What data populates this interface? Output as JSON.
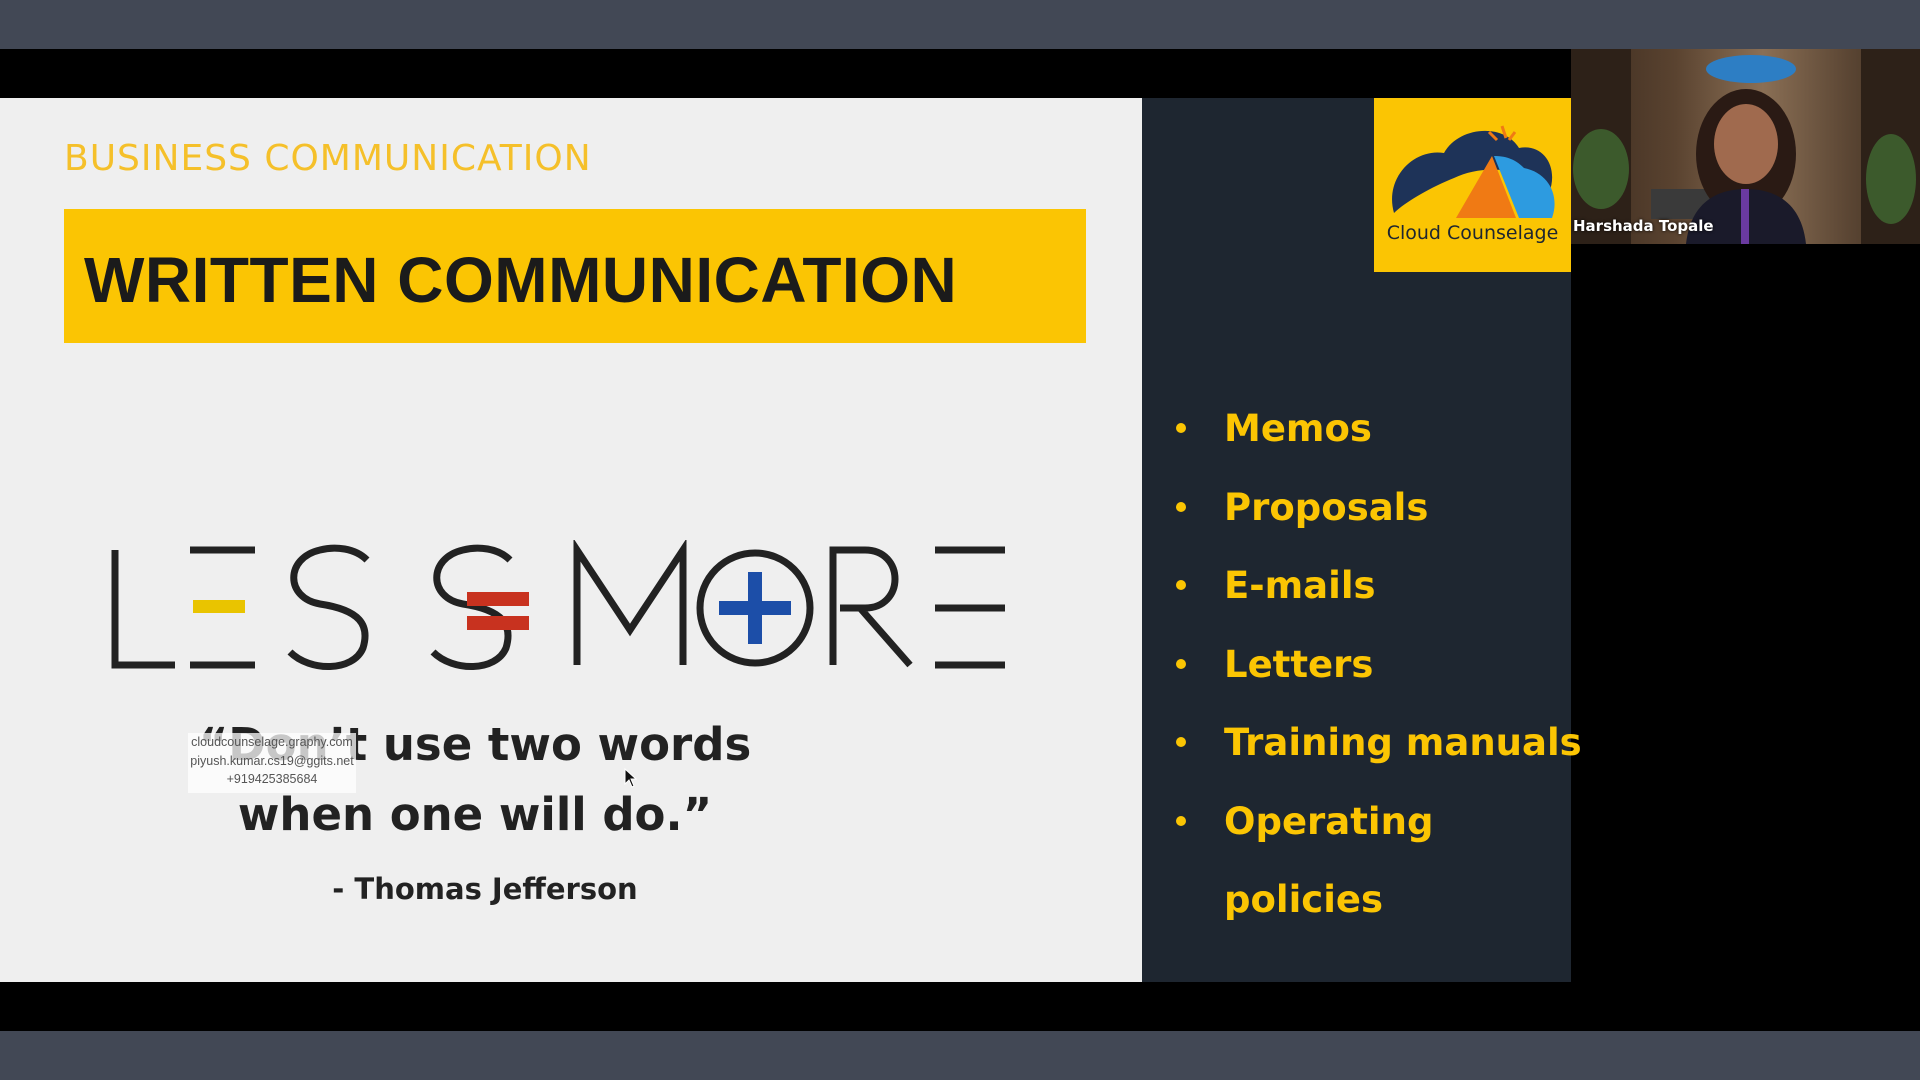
{
  "slide": {
    "section_label": "BUSINESS COMMUNICATION",
    "title": "WRITTEN COMMUNICATION",
    "graphic_text": "LESS = MORE",
    "quote_line1": "“Don’t use two words",
    "quote_line2": "when one will do.”",
    "author": "- Thomas Jefferson",
    "logo_name": "Cloud Counselage",
    "bullets": [
      "Memos",
      "Proposals",
      "E-mails",
      "Letters",
      "Training manuals",
      "Operating"
    ],
    "bullet_continuation": "policies"
  },
  "watermark": {
    "line1": "cloudcounselage.graphy.com",
    "line2": "piyush.kumar.cs19@ggits.net",
    "line3": "+919425385684"
  },
  "participant": {
    "name": "Harshada Topale"
  },
  "colors": {
    "accent_yellow": "#fbc503",
    "dark_panel": "#1e2630",
    "red": "#c8321f",
    "blue": "#1c4ea8",
    "frame_gray": "#424855"
  }
}
